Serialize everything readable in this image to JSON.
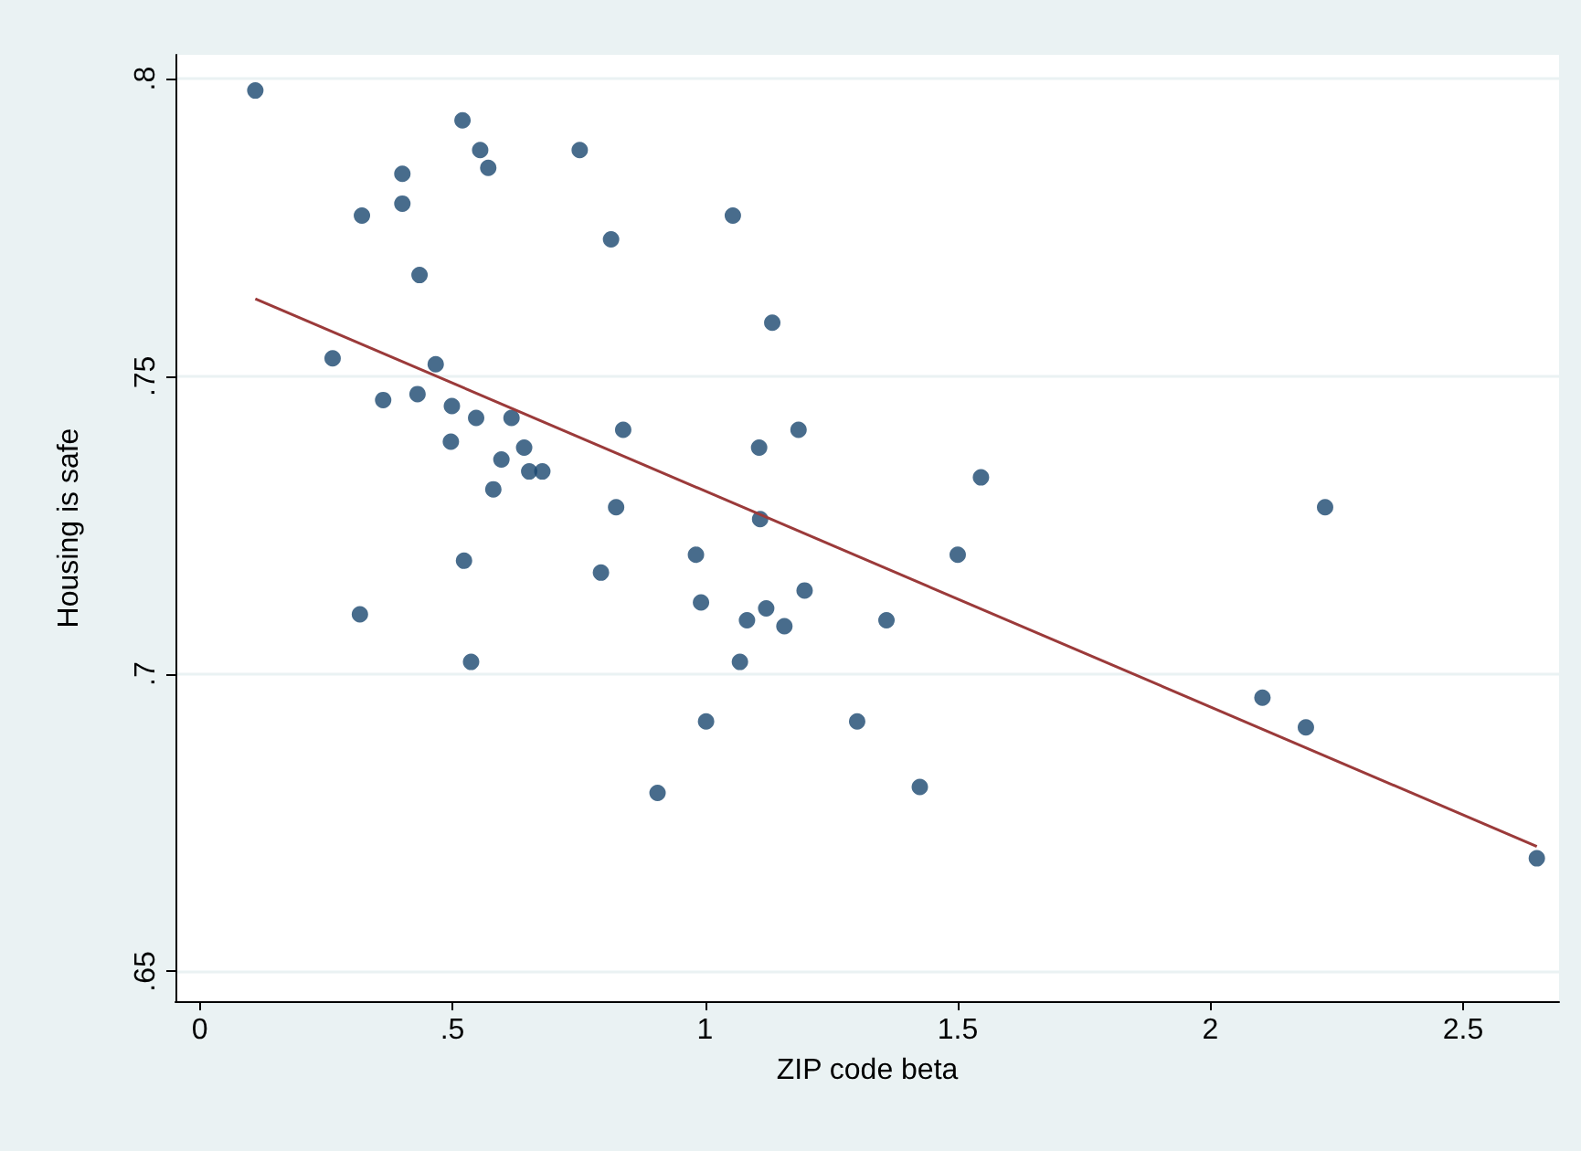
{
  "chart_data": {
    "type": "scatter",
    "xlabel": "ZIP code beta",
    "ylabel": "Housing is safe",
    "xlim": [
      -0.048,
      2.69
    ],
    "ylim": [
      0.645,
      0.804
    ],
    "xticks": [
      0,
      {
        "value": 0.5,
        "label": ".5"
      },
      1,
      1.5,
      2,
      2.5
    ],
    "yticks": [
      {
        "value": 0.65,
        "label": ".65"
      },
      {
        "value": 0.7,
        "label": ".7"
      },
      {
        "value": 0.75,
        "label": ".75"
      },
      {
        "value": 0.8,
        "label": ".8"
      }
    ],
    "grid": "y",
    "series": [
      {
        "color": "#1a476f",
        "marker": "circle",
        "x": [
          0.11,
          0.52,
          0.555,
          0.571,
          0.752,
          0.401,
          0.401,
          0.321,
          1.055,
          0.814,
          0.435,
          1.133,
          0.263,
          0.467,
          0.363,
          0.431,
          0.499,
          0.547,
          0.617,
          0.838,
          1.185,
          0.497,
          0.642,
          1.107,
          0.597,
          0.581,
          0.652,
          0.678,
          1.546,
          2.227,
          0.824,
          1.109,
          1.5,
          0.982,
          0.523,
          0.794,
          1.197,
          0.992,
          1.121,
          0.317,
          1.083,
          1.359,
          1.157,
          0.537,
          1.069,
          2.103,
          2.189,
          1.002,
          1.301,
          0.906,
          1.425,
          2.646
        ],
        "values": [
          0.798,
          0.793,
          0.788,
          0.785,
          0.788,
          0.784,
          0.779,
          0.777,
          0.777,
          0.773,
          0.767,
          0.759,
          0.753,
          0.752,
          0.746,
          0.747,
          0.745,
          0.743,
          0.743,
          0.741,
          0.741,
          0.739,
          0.738,
          0.738,
          0.736,
          0.731,
          0.734,
          0.734,
          0.733,
          0.728,
          0.728,
          0.726,
          0.72,
          0.72,
          0.719,
          0.717,
          0.714,
          0.712,
          0.711,
          0.71,
          0.709,
          0.709,
          0.708,
          0.702,
          0.702,
          0.696,
          0.691,
          0.692,
          0.692,
          0.68,
          0.681,
          0.669
        ]
      },
      {
        "type": "line",
        "color": "#9b3a3a",
        "line_style": "solid",
        "marker": "none",
        "x": [
          0.11,
          2.646
        ],
        "values": [
          0.763,
          0.671
        ]
      }
    ]
  }
}
